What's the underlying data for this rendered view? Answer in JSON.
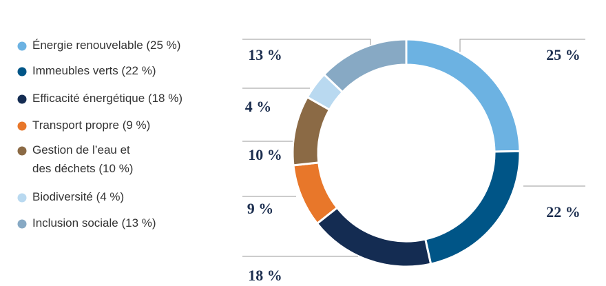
{
  "chart_data": {
    "type": "donut",
    "categories": [
      "Énergie renouvelable (25 %)",
      "Immeubles verts (22 %)",
      "Efficacité énergétique (18 %)",
      "Transport propre (9 %)",
      "Gestion de l’eau et\ndes déchets (10 %)",
      "Biodiversité (4 %)",
      "Inclusion sociale (13 %)"
    ],
    "values": [
      25,
      22,
      18,
      9,
      10,
      4,
      13
    ],
    "value_labels": [
      "25 %",
      "22 %",
      "18 %",
      "9 %",
      "10 %",
      "4 %",
      "13 %"
    ],
    "colors": [
      "#6cb2e2",
      "#005587",
      "#142c52",
      "#e8772a",
      "#8b6a45",
      "#b9d9f0",
      "#87a9c4"
    ]
  }
}
